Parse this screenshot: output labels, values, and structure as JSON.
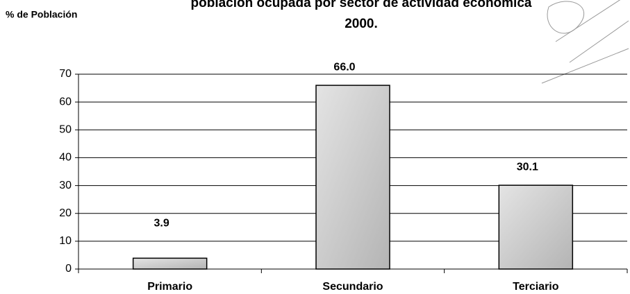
{
  "chart_data": {
    "type": "bar",
    "title": "población ocupada por sector de actividad económica 2000.",
    "y_label": "% de Población",
    "categories": [
      "Primario",
      "Secundario",
      "Terciario"
    ],
    "values": [
      3.9,
      66,
      30.1
    ],
    "value_labels": [
      "3.9",
      "66.0",
      "30.1"
    ],
    "color": "#c0c0c0",
    "ylim": [
      0,
      70
    ],
    "yticks": [
      0,
      10,
      20,
      30,
      40,
      50,
      60,
      70
    ],
    "grid": true
  }
}
